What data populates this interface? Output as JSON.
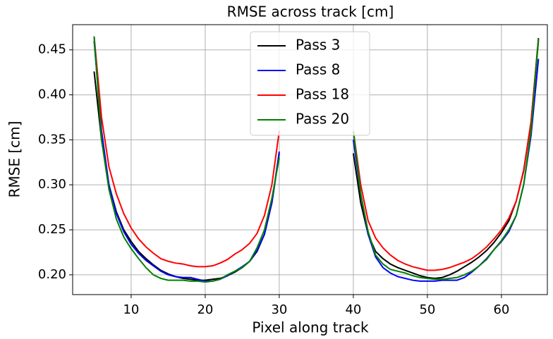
{
  "chart_data": {
    "type": "line",
    "title": "RMSE across track [cm]",
    "x_label": "Pixel along track",
    "y_label": "RMSE [cm]",
    "x": [
      5,
      6,
      7,
      8,
      9,
      10,
      11,
      12,
      13,
      14,
      15,
      16,
      17,
      18,
      19,
      20,
      21,
      22,
      23,
      24,
      25,
      26,
      27,
      28,
      29,
      30,
      35,
      40,
      41,
      42,
      43,
      44,
      45,
      46,
      47,
      48,
      49,
      50,
      51,
      52,
      53,
      54,
      55,
      56,
      57,
      58,
      59,
      60,
      61,
      62,
      63,
      64,
      65
    ],
    "series": [
      {
        "name": "Pass 3",
        "color": "#000000",
        "values": [
          0.426,
          0.35,
          0.3,
          0.27,
          0.25,
          0.237,
          0.226,
          0.218,
          0.211,
          0.205,
          0.201,
          0.198,
          0.196,
          0.195,
          0.194,
          0.194,
          0.195,
          0.196,
          0.199,
          0.203,
          0.208,
          0.215,
          0.226,
          0.245,
          0.28,
          0.335,
          null,
          0.335,
          0.28,
          0.245,
          0.226,
          0.218,
          0.212,
          0.208,
          0.205,
          0.202,
          0.199,
          0.197,
          0.196,
          0.197,
          0.2,
          0.204,
          0.209,
          0.214,
          0.22,
          0.227,
          0.236,
          0.247,
          0.26,
          0.282,
          0.316,
          0.37,
          0.463
        ]
      },
      {
        "name": "Pass 8",
        "color": "#0000ff",
        "values": [
          0.46,
          0.36,
          0.3,
          0.268,
          0.248,
          0.234,
          0.224,
          0.216,
          0.21,
          0.204,
          0.2,
          0.198,
          0.197,
          0.197,
          0.195,
          0.193,
          0.193,
          0.195,
          0.199,
          0.204,
          0.209,
          0.215,
          0.227,
          0.245,
          0.28,
          0.337,
          null,
          0.35,
          0.29,
          0.245,
          0.22,
          0.208,
          0.202,
          0.198,
          0.196,
          0.194,
          0.193,
          0.193,
          0.193,
          0.194,
          0.194,
          0.194,
          0.197,
          0.203,
          0.21,
          0.218,
          0.228,
          0.237,
          0.248,
          0.266,
          0.3,
          0.355,
          0.44
        ]
      },
      {
        "name": "Pass 18",
        "color": "#ff0000",
        "values": [
          0.465,
          0.375,
          0.32,
          0.29,
          0.268,
          0.252,
          0.24,
          0.231,
          0.224,
          0.218,
          0.215,
          0.213,
          0.212,
          0.21,
          0.209,
          0.209,
          0.21,
          0.213,
          0.217,
          0.223,
          0.228,
          0.235,
          0.246,
          0.266,
          0.3,
          0.36,
          null,
          0.36,
          0.3,
          0.26,
          0.241,
          0.23,
          0.222,
          0.216,
          0.212,
          0.209,
          0.207,
          0.205,
          0.205,
          0.206,
          0.208,
          0.211,
          0.214,
          0.218,
          0.224,
          0.231,
          0.24,
          0.25,
          0.263,
          0.282,
          0.315,
          0.37,
          0.46
        ]
      },
      {
        "name": "Pass 20",
        "color": "#008000",
        "values": [
          0.465,
          0.35,
          0.295,
          0.262,
          0.242,
          0.229,
          0.218,
          0.208,
          0.2,
          0.196,
          0.194,
          0.194,
          0.194,
          0.193,
          0.193,
          0.192,
          0.193,
          0.195,
          0.2,
          0.204,
          0.208,
          0.215,
          0.23,
          0.25,
          0.285,
          0.33,
          null,
          0.36,
          0.29,
          0.248,
          0.222,
          0.212,
          0.206,
          0.204,
          0.202,
          0.199,
          0.197,
          0.196,
          0.195,
          0.195,
          0.196,
          0.197,
          0.2,
          0.204,
          0.21,
          0.217,
          0.228,
          0.238,
          0.25,
          0.266,
          0.3,
          0.36,
          0.462
        ]
      }
    ],
    "xlim": [
      2.1,
      66.2
    ],
    "ylim": [
      0.178,
      0.478
    ],
    "xticks": [
      10,
      20,
      30,
      40,
      50,
      60
    ],
    "yticks": [
      {
        "value": 0.2,
        "label": "0.20"
      },
      0.25,
      {
        "value": 0.3,
        "label": "0.30"
      },
      0.35,
      {
        "value": 0.4,
        "label": "0.40"
      },
      0.45
    ],
    "grid": true,
    "legend": "upper center"
  }
}
